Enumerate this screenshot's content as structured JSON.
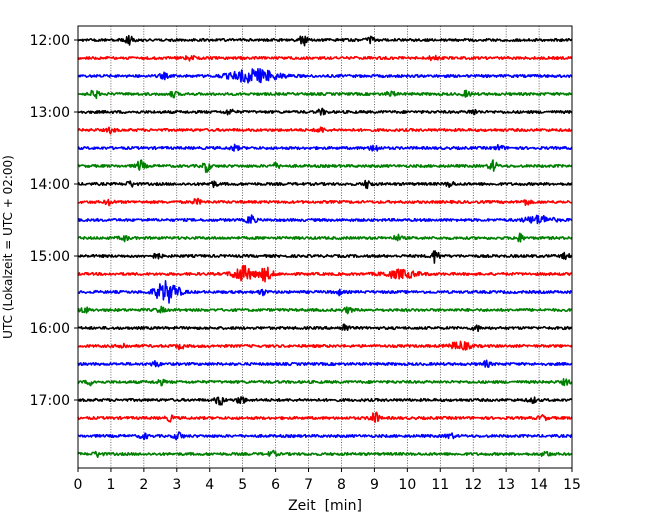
{
  "chart_data": {
    "type": "line",
    "title": "",
    "xlabel": "Zeit  [min]",
    "ylabel": "UTC (Lokalzeit = UTC + 02:00)",
    "xlim": [
      0,
      15
    ],
    "x_ticks": [
      "0",
      "1",
      "2",
      "3",
      "4",
      "5",
      "6",
      "7",
      "8",
      "9",
      "10",
      "11",
      "12",
      "13",
      "14",
      "15"
    ],
    "y_tick_labels": [
      "12:00",
      "13:00",
      "14:00",
      "15:00",
      "16:00",
      "17:00"
    ],
    "y_tick_rows": [
      0,
      4,
      8,
      12,
      16,
      20
    ],
    "grid": "vertical dotted lines at each minute",
    "row_interval_minutes": 15,
    "color_cycle": [
      "#000000",
      "#ff0000",
      "#0000ff",
      "#008000"
    ],
    "rows": [
      {
        "start": "12:00",
        "color": "#000000",
        "events": [
          {
            "t": 1.55,
            "amp": 4
          },
          {
            "t": 6.85,
            "amp": 5
          },
          {
            "t": 8.9,
            "amp": 3
          }
        ]
      },
      {
        "start": "12:15",
        "color": "#ff0000",
        "events": [
          {
            "t": 3.4,
            "amp": 3
          },
          {
            "t": 10.8,
            "amp": 3
          }
        ]
      },
      {
        "start": "12:30",
        "color": "#0000ff",
        "events": [
          {
            "t": 5.35,
            "amp": 6,
            "width": 0.7
          },
          {
            "t": 2.6,
            "amp": 3
          }
        ]
      },
      {
        "start": "12:45",
        "color": "#008000",
        "events": [
          {
            "t": 0.5,
            "amp": 4
          },
          {
            "t": 2.9,
            "amp": 3
          },
          {
            "t": 9.5,
            "amp": 3
          },
          {
            "t": 11.8,
            "amp": 3
          }
        ]
      },
      {
        "start": "13:00",
        "color": "#000000",
        "events": [
          {
            "t": 4.6,
            "amp": 3
          },
          {
            "t": 7.4,
            "amp": 3
          },
          {
            "t": 12.0,
            "amp": 3
          }
        ]
      },
      {
        "start": "13:15",
        "color": "#ff0000",
        "events": [
          {
            "t": 1.0,
            "amp": 3
          },
          {
            "t": 7.35,
            "amp": 3
          }
        ]
      },
      {
        "start": "13:30",
        "color": "#0000ff",
        "events": [
          {
            "t": 4.75,
            "amp": 3
          },
          {
            "t": 9.0,
            "amp": 4
          },
          {
            "t": 12.8,
            "amp": 3
          }
        ]
      },
      {
        "start": "13:45",
        "color": "#008000",
        "events": [
          {
            "t": 1.9,
            "amp": 5
          },
          {
            "t": 3.9,
            "amp": 5
          },
          {
            "t": 6.0,
            "amp": 3
          },
          {
            "t": 12.6,
            "amp": 5
          }
        ]
      },
      {
        "start": "14:00",
        "color": "#000000",
        "events": [
          {
            "t": 1.6,
            "amp": 3
          },
          {
            "t": 4.1,
            "amp": 3
          },
          {
            "t": 8.8,
            "amp": 4
          },
          {
            "t": 11.3,
            "amp": 3
          }
        ]
      },
      {
        "start": "14:15",
        "color": "#ff0000",
        "events": [
          {
            "t": 0.95,
            "amp": 3
          },
          {
            "t": 3.6,
            "amp": 3
          },
          {
            "t": 13.6,
            "amp": 3
          }
        ]
      },
      {
        "start": "14:30",
        "color": "#0000ff",
        "events": [
          {
            "t": 5.25,
            "amp": 5
          },
          {
            "t": 14.0,
            "amp": 4,
            "width": 0.4
          }
        ]
      },
      {
        "start": "14:45",
        "color": "#008000",
        "events": [
          {
            "t": 1.4,
            "amp": 3
          },
          {
            "t": 9.7,
            "amp": 3
          },
          {
            "t": 13.4,
            "amp": 4
          }
        ]
      },
      {
        "start": "15:00",
        "color": "#000000",
        "events": [
          {
            "t": 2.4,
            "amp": 3
          },
          {
            "t": 10.85,
            "amp": 6
          },
          {
            "t": 14.8,
            "amp": 3
          }
        ]
      },
      {
        "start": "15:15",
        "color": "#ff0000",
        "events": [
          {
            "t": 5.0,
            "amp": 7,
            "width": 0.3
          },
          {
            "t": 5.7,
            "amp": 6,
            "width": 0.2
          },
          {
            "t": 9.8,
            "amp": 4,
            "width": 0.5
          }
        ]
      },
      {
        "start": "15:30",
        "color": "#0000ff",
        "events": [
          {
            "t": 2.7,
            "amp": 9,
            "width": 0.35
          },
          {
            "t": 5.6,
            "amp": 3
          },
          {
            "t": 7.9,
            "amp": 3
          }
        ]
      },
      {
        "start": "15:45",
        "color": "#008000",
        "events": [
          {
            "t": 0.2,
            "amp": 3
          },
          {
            "t": 2.5,
            "amp": 3
          },
          {
            "t": 8.2,
            "amp": 3
          }
        ]
      },
      {
        "start": "16:00",
        "color": "#000000",
        "events": [
          {
            "t": 8.1,
            "amp": 4
          },
          {
            "t": 12.1,
            "amp": 3
          }
        ]
      },
      {
        "start": "16:15",
        "color": "#ff0000",
        "events": [
          {
            "t": 1.35,
            "amp": 3
          },
          {
            "t": 3.1,
            "amp": 3
          },
          {
            "t": 11.6,
            "amp": 4,
            "width": 0.3
          }
        ]
      },
      {
        "start": "16:30",
        "color": "#0000ff",
        "events": [
          {
            "t": 2.35,
            "amp": 3
          },
          {
            "t": 12.4,
            "amp": 3
          }
        ]
      },
      {
        "start": "16:45",
        "color": "#008000",
        "events": [
          {
            "t": 0.4,
            "amp": 3
          },
          {
            "t": 2.5,
            "amp": 3
          },
          {
            "t": 14.8,
            "amp": 3
          }
        ]
      },
      {
        "start": "17:00",
        "color": "#000000",
        "events": [
          {
            "t": 4.3,
            "amp": 5
          },
          {
            "t": 4.95,
            "amp": 4
          },
          {
            "t": 13.8,
            "amp": 3
          }
        ]
      },
      {
        "start": "17:15",
        "color": "#ff0000",
        "events": [
          {
            "t": 2.8,
            "amp": 3
          },
          {
            "t": 9.0,
            "amp": 6
          },
          {
            "t": 14.1,
            "amp": 3
          }
        ]
      },
      {
        "start": "17:30",
        "color": "#0000ff",
        "events": [
          {
            "t": 2.0,
            "amp": 3
          },
          {
            "t": 3.05,
            "amp": 4
          },
          {
            "t": 11.3,
            "amp": 3
          }
        ]
      },
      {
        "start": "17:45",
        "color": "#008000",
        "events": [
          {
            "t": 0.6,
            "amp": 3
          },
          {
            "t": 5.9,
            "amp": 3
          },
          {
            "t": 14.2,
            "amp": 3
          }
        ]
      }
    ]
  }
}
